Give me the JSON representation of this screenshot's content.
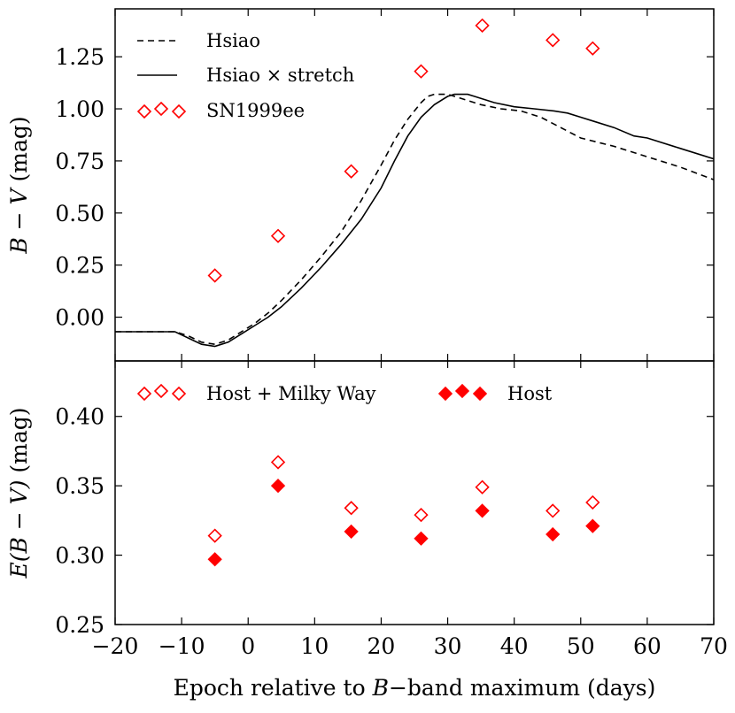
{
  "chart_data": [
    {
      "type": "line",
      "panel": "top",
      "ylabel_main": "B − V",
      "ylabel_unit": " (mag)",
      "xlim": [
        -20,
        70
      ],
      "ylim": [
        -0.21,
        1.48
      ],
      "yticks": [
        0.0,
        0.25,
        0.5,
        0.75,
        1.0,
        1.25
      ],
      "ytick_labels": [
        "0.00",
        "0.25",
        "0.50",
        "0.75",
        "1.00",
        "1.25"
      ],
      "series": [
        {
          "name": "Hsiao",
          "style": "dashed",
          "x": [
            -20,
            -17,
            -14,
            -11,
            -9,
            -7,
            -5,
            -3,
            -1,
            1,
            3,
            5,
            8,
            11,
            14,
            17,
            20,
            22,
            24,
            26,
            27,
            28,
            29,
            30,
            31,
            33,
            35,
            38,
            41,
            44,
            47,
            50,
            55,
            60,
            65,
            70
          ],
          "y": [
            -0.07,
            -0.07,
            -0.07,
            -0.07,
            -0.09,
            -0.12,
            -0.13,
            -0.11,
            -0.07,
            -0.03,
            0.02,
            0.08,
            0.18,
            0.29,
            0.41,
            0.56,
            0.73,
            0.85,
            0.95,
            1.03,
            1.06,
            1.07,
            1.07,
            1.07,
            1.06,
            1.04,
            1.02,
            1.0,
            0.99,
            0.96,
            0.91,
            0.86,
            0.82,
            0.77,
            0.72,
            0.66
          ]
        },
        {
          "name": "Hsiao × stretch",
          "style": "solid",
          "x": [
            -20,
            -17,
            -14,
            -11,
            -9,
            -7,
            -5,
            -3,
            -1,
            1,
            3,
            5,
            8,
            11,
            14,
            17,
            20,
            22,
            24,
            26,
            28,
            30,
            31,
            32,
            33,
            34,
            35,
            37,
            40,
            43,
            46,
            48,
            50,
            52,
            55,
            58,
            60,
            65,
            70
          ],
          "y": [
            -0.07,
            -0.07,
            -0.07,
            -0.07,
            -0.1,
            -0.13,
            -0.14,
            -0.12,
            -0.08,
            -0.04,
            0.0,
            0.05,
            0.14,
            0.24,
            0.35,
            0.47,
            0.62,
            0.75,
            0.87,
            0.96,
            1.02,
            1.06,
            1.07,
            1.07,
            1.07,
            1.06,
            1.05,
            1.03,
            1.01,
            1.0,
            0.99,
            0.98,
            0.96,
            0.94,
            0.91,
            0.87,
            0.86,
            0.81,
            0.76
          ]
        },
        {
          "name": "SN1999ee",
          "style": "open-diamond",
          "x": [
            -5,
            4.5,
            15.5,
            26,
            35.2,
            45.8,
            51.8
          ],
          "y": [
            0.2,
            0.39,
            0.7,
            1.18,
            1.4,
            1.33,
            1.29
          ]
        }
      ]
    },
    {
      "type": "scatter",
      "panel": "bottom",
      "xlabel_pre": "Epoch relative to ",
      "xlabel_b": "B",
      "xlabel_post": "−band maximum (days)",
      "ylabel_main": "E(B − V)",
      "ylabel_unit": " (mag)",
      "xlim": [
        -20,
        70
      ],
      "ylim": [
        0.25,
        0.44
      ],
      "xticks": [
        -20,
        -10,
        0,
        10,
        20,
        30,
        40,
        50,
        60,
        70
      ],
      "xtick_labels": [
        "−20",
        "−10",
        "0",
        "10",
        "20",
        "30",
        "40",
        "50",
        "60",
        "70"
      ],
      "yticks": [
        0.25,
        0.3,
        0.35,
        0.4
      ],
      "ytick_labels": [
        "0.25",
        "0.30",
        "0.35",
        "0.40"
      ],
      "series": [
        {
          "name": "Host + Milky Way",
          "style": "open-diamond",
          "x": [
            -5,
            4.5,
            15.5,
            26,
            35.2,
            45.8,
            51.8
          ],
          "y": [
            0.314,
            0.367,
            0.334,
            0.329,
            0.349,
            0.332,
            0.338
          ]
        },
        {
          "name": "Host",
          "style": "filled-diamond",
          "x": [
            -5,
            4.5,
            15.5,
            26,
            35.2,
            45.8,
            51.8
          ],
          "y": [
            0.297,
            0.35,
            0.317,
            0.312,
            0.332,
            0.315,
            0.321
          ]
        }
      ]
    }
  ],
  "colors": {
    "marker": "#ff0000",
    "line": "#000000"
  }
}
